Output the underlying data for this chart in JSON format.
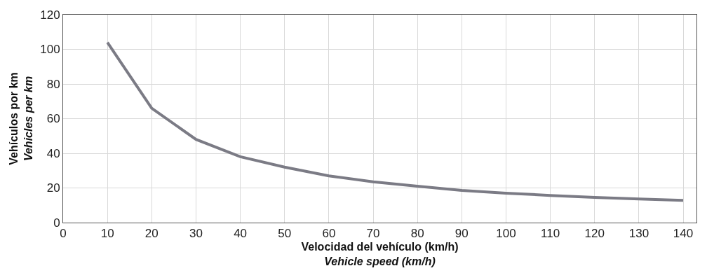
{
  "chart_data": {
    "type": "line",
    "xlabel": "Velocidad del vehículo (km/h)\nVehicle speed (km/h)",
    "ylabel": "Vehículos por km\nVehicles per km",
    "x": [
      10,
      20,
      30,
      40,
      50,
      60,
      70,
      80,
      90,
      100,
      110,
      120,
      130,
      140
    ],
    "series": [
      {
        "color": "#7b7b85",
        "values": [
          104,
          66,
          48,
          38,
          32,
          27,
          23.5,
          21,
          18.6,
          17,
          15.7,
          14.5,
          13.6,
          12.8
        ]
      }
    ],
    "xlim": [
      0,
      143
    ],
    "xticks": [
      0,
      10,
      20,
      30,
      40,
      50,
      60,
      70,
      80,
      90,
      100,
      110,
      120,
      130,
      140
    ],
    "ylim": [
      0,
      120
    ],
    "yticks": [
      0,
      20,
      40,
      60,
      80,
      100,
      120
    ],
    "grid": true,
    "legend": false,
    "marker": "none",
    "line_style": "solid"
  }
}
